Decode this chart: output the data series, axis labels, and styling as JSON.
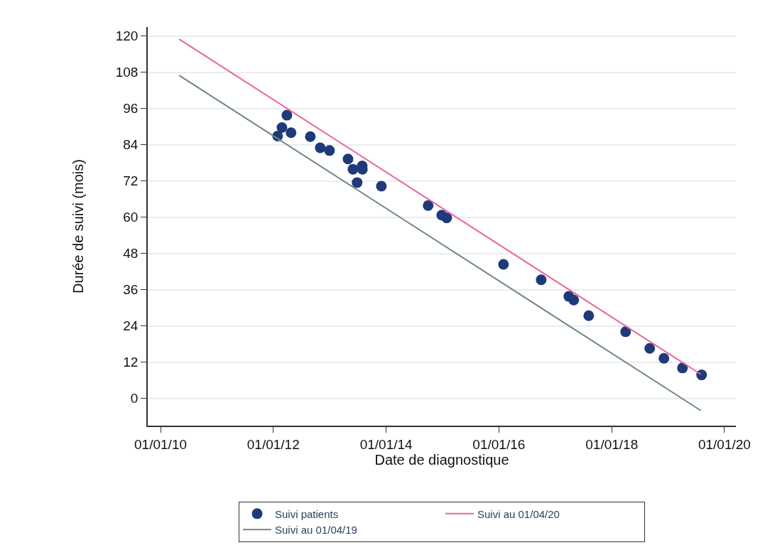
{
  "chart_data": {
    "type": "scatter",
    "xlabel": "Date de diagnostique",
    "ylabel": "Durée de suivi (mois)",
    "xlim": [
      "2009-10-10",
      "2020-03-15"
    ],
    "ylim": [
      -9,
      123
    ],
    "xticks": [
      {
        "value": "2010-01-01",
        "label": "01/01/10"
      },
      {
        "value": "2012-01-01",
        "label": "01/01/12"
      },
      {
        "value": "2014-01-01",
        "label": "01/01/14"
      },
      {
        "value": "2016-01-01",
        "label": "01/01/16"
      },
      {
        "value": "2018-01-01",
        "label": "01/01/18"
      },
      {
        "value": "2020-01-01",
        "label": "01/01/20"
      }
    ],
    "yticks": [
      0,
      12,
      24,
      36,
      48,
      60,
      72,
      84,
      96,
      108,
      120
    ],
    "grid": "y",
    "legend": "bottom",
    "series": [
      {
        "name": "Suivi patients",
        "marker": "circle",
        "color": "#1f3a7a",
        "x": [
          "2012-01-29",
          "2012-02-26",
          "2012-03-29",
          "2012-04-25",
          "2012-08-28",
          "2012-10-31",
          "2012-12-30",
          "2013-04-29",
          "2013-05-31",
          "2013-07-30",
          "2013-07-31",
          "2013-06-27",
          "2013-12-01",
          "2014-09-30",
          "2014-12-27",
          "2015-01-28",
          "2016-01-31",
          "2016-10-01",
          "2017-03-29",
          "2017-04-30",
          "2017-08-05",
          "2018-04-01",
          "2018-09-04",
          "2018-12-05",
          "2019-04-04",
          "2019-08-06"
        ],
        "values": [
          86.9,
          89.7,
          93.8,
          88.0,
          86.7,
          83.0,
          82.1,
          79.3,
          75.9,
          77.0,
          75.9,
          71.5,
          70.3,
          63.9,
          60.7,
          59.8,
          44.4,
          39.3,
          33.8,
          32.6,
          27.4,
          22.1,
          16.6,
          13.3,
          10.1,
          7.8
        ]
      },
      {
        "name": "Suivi au 01/04/20",
        "type": "line",
        "marker": "none",
        "color": "#e8669a",
        "x": [
          "2010-05-01",
          "2019-08-01"
        ],
        "values": [
          119,
          8
        ]
      },
      {
        "name": "Suivi au 01/04/19",
        "type": "line",
        "marker": "none",
        "color": "#6e8a80",
        "x": [
          "2010-05-01",
          "2019-08-01"
        ],
        "values": [
          107,
          -4
        ]
      }
    ]
  }
}
